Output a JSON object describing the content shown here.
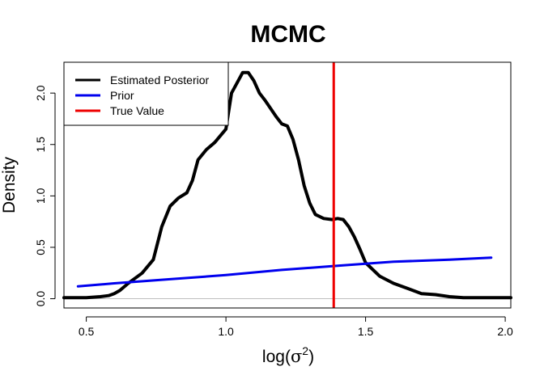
{
  "chart_data": {
    "type": "line",
    "title": "MCMC",
    "xlabel": "log",
    "xlabel_symbol": "σ",
    "xlabel_superscript": "2",
    "ylabel": "Density",
    "xlim": [
      0.42,
      2.02
    ],
    "ylim": [
      -0.09,
      2.3
    ],
    "xticks": [
      0.5,
      1.0,
      1.5,
      2.0
    ],
    "xtick_labels": [
      "0.5",
      "1.0",
      "1.5",
      "2.0"
    ],
    "yticks": [
      0.0,
      0.5,
      1.0,
      1.5,
      2.0
    ],
    "ytick_labels": [
      "0.0",
      "0.5",
      "1.0",
      "1.5",
      "2.0"
    ],
    "grid": false,
    "legend_position": "top-left",
    "baseline": 0,
    "series": [
      {
        "name": "Estimated Posterior",
        "color": "#000000",
        "x": [
          0.42,
          0.5,
          0.55,
          0.58,
          0.6,
          0.62,
          0.65,
          0.7,
          0.74,
          0.77,
          0.8,
          0.83,
          0.86,
          0.88,
          0.9,
          0.93,
          0.96,
          1.0,
          1.02,
          1.04,
          1.06,
          1.08,
          1.1,
          1.12,
          1.14,
          1.16,
          1.18,
          1.2,
          1.22,
          1.24,
          1.26,
          1.28,
          1.3,
          1.32,
          1.35,
          1.38,
          1.4,
          1.42,
          1.44,
          1.46,
          1.48,
          1.5,
          1.55,
          1.6,
          1.65,
          1.7,
          1.75,
          1.8,
          1.85,
          1.9,
          2.02
        ],
        "y": [
          0.01,
          0.01,
          0.02,
          0.03,
          0.05,
          0.08,
          0.15,
          0.25,
          0.38,
          0.7,
          0.9,
          0.98,
          1.03,
          1.15,
          1.35,
          1.45,
          1.52,
          1.65,
          2.0,
          2.1,
          2.2,
          2.2,
          2.12,
          2.0,
          1.93,
          1.85,
          1.77,
          1.7,
          1.68,
          1.55,
          1.35,
          1.1,
          0.93,
          0.82,
          0.78,
          0.77,
          0.78,
          0.77,
          0.7,
          0.6,
          0.48,
          0.35,
          0.22,
          0.15,
          0.1,
          0.05,
          0.04,
          0.02,
          0.01,
          0.01,
          0.01
        ]
      },
      {
        "name": "Prior",
        "color": "#0000ee",
        "x": [
          0.47,
          0.6,
          0.8,
          1.0,
          1.2,
          1.4,
          1.6,
          1.8,
          1.95
        ],
        "y": [
          0.12,
          0.15,
          0.19,
          0.23,
          0.28,
          0.32,
          0.36,
          0.38,
          0.4
        ]
      },
      {
        "name": "True Value",
        "color": "#ee0000",
        "vline": 1.386
      }
    ]
  }
}
